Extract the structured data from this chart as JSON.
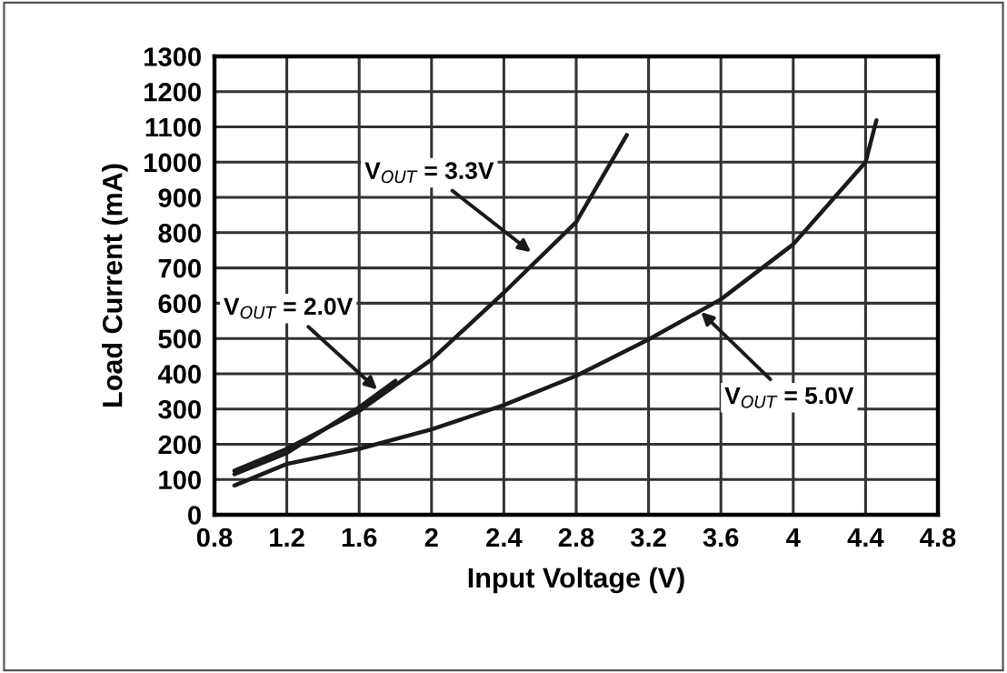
{
  "chart_data": {
    "type": "line",
    "xlabel": "Input Voltage (V)",
    "ylabel": "Load Current (mA)",
    "xlim": [
      0.8,
      4.8
    ],
    "xticks": [
      0.8,
      1.2,
      1.6,
      2,
      2.4,
      2.8,
      3.2,
      3.6,
      4,
      4.4,
      4.8
    ],
    "ylim": [
      0,
      1300
    ],
    "yticks": [
      0,
      100,
      200,
      300,
      400,
      500,
      600,
      700,
      800,
      900,
      1000,
      1100,
      1200,
      1300
    ],
    "grid": true,
    "series": [
      {
        "color": "#1a1a1a",
        "x": [
          0.91,
          1.2,
          1.6,
          2.0,
          2.4,
          2.8,
          3.08
        ],
        "values": [
          125,
          187,
          294,
          440,
          630,
          830,
          1077
        ]
      },
      {
        "color": "#1a1a1a",
        "x": [
          0.91,
          1.2,
          1.6,
          1.8
        ],
        "values": [
          115,
          175,
          305,
          380
        ]
      },
      {
        "color": "#1a1a1a",
        "x": [
          0.91,
          1.2,
          1.6,
          2.0,
          2.4,
          2.8,
          3.2,
          3.6,
          4.0,
          4.4,
          4.46
        ],
        "values": [
          83,
          144,
          187,
          242,
          311,
          394,
          497,
          611,
          767,
          1000,
          1119
        ]
      }
    ],
    "annotations": [
      {
        "text": "V$_{OUT}$ = 3.3V",
        "x": 2.55,
        "y": 745
      },
      {
        "text": "V$_{OUT}$ = 2.0V",
        "x": 1.7,
        "y": 355
      },
      {
        "text": "V$_{OUT}$ = 5.0V",
        "x": 3.49,
        "y": 575
      }
    ]
  }
}
